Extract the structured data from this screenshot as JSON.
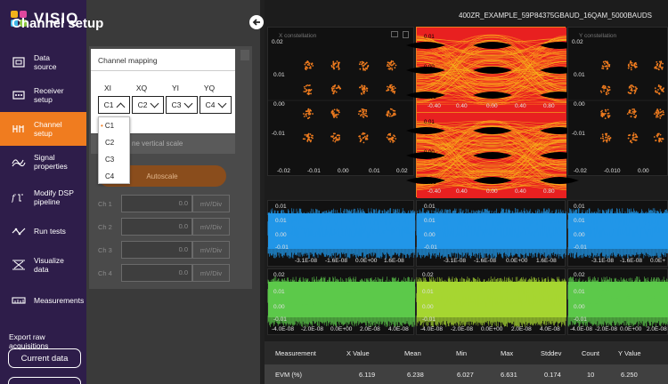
{
  "app": {
    "logo_text": "VISIQ",
    "logo_colors": [
      "#f2b21b",
      "#e0479e",
      "#3fb7e8",
      "#8bc53f"
    ]
  },
  "nav": {
    "items": [
      {
        "label": "Data source",
        "icon": "data-source-icon"
      },
      {
        "label": "Receiver setup",
        "icon": "receiver-icon"
      },
      {
        "label": "Channel setup",
        "icon": "channel-icon",
        "active": true
      },
      {
        "label": "Signal properties",
        "icon": "signal-icon"
      },
      {
        "label": "Modify DSP pipeline",
        "icon": "dsp-icon"
      },
      {
        "label": "Run tests",
        "icon": "run-tests-icon"
      },
      {
        "label": "Visualize data",
        "icon": "visualize-icon"
      },
      {
        "label": "Measurements",
        "icon": "measurements-icon"
      }
    ],
    "export_label": "Export raw acquisitions",
    "current_data_button": "Current data",
    "active_color": "#f07c1f"
  },
  "panel": {
    "title": "Channel setup",
    "mapping_title": "Channel mapping",
    "columns": [
      {
        "label": "XI",
        "value": "C1"
      },
      {
        "label": "XQ",
        "value": "C2"
      },
      {
        "label": "YI",
        "value": "C3"
      },
      {
        "label": "YQ",
        "value": "C4"
      }
    ],
    "dropdown_options": [
      "C1",
      "C2",
      "C3",
      "C4"
    ],
    "dropdown_selected": "C1",
    "vertical_scale_label": "ne vertical scale",
    "autoscale_label": "Autoscale",
    "channels": [
      {
        "label": "Ch 1",
        "value": "0.0",
        "unit": "mV/Div"
      },
      {
        "label": "Ch 2",
        "value": "0.0",
        "unit": "mV/Div"
      },
      {
        "label": "Ch 3",
        "value": "0.0",
        "unit": "mV/Div"
      },
      {
        "label": "Ch 4",
        "value": "0.0",
        "unit": "mV/Div"
      }
    ]
  },
  "plots": {
    "file_title": "400ZR_EXAMPLE_59P84375GBAUD_16QAM_5000BAUDS",
    "x_constellation_label": "X constellation",
    "y_constellation_label": "Y constellation",
    "x_const_yticks": [
      "0.02",
      "0.01",
      "0.00",
      "-0.01"
    ],
    "x_const_xticks": [
      "-0.02",
      "-0.01",
      "0.00",
      "0.01",
      "0.02"
    ],
    "y_const_yticks": [
      "0.02",
      "0.01",
      "0.00",
      "-0.01"
    ],
    "y_const_xticks": [
      "-0.02",
      "-0.010",
      "0.00"
    ],
    "eye_yticks": [
      "0.01",
      "0.00",
      "-0.01"
    ],
    "eye_xticks": [
      "-0.40",
      "0.40",
      "0.00",
      "0.40",
      "0.80"
    ],
    "time_xticks_a": [
      "-3.1E-08",
      "-1.6E-08",
      "0.0E+00",
      "1.6E-08"
    ],
    "time_xticks_b": [
      "-3.1E-08",
      "-1.6E-08",
      "0.0E+00",
      "1.6E-08"
    ],
    "time_xticks_c": [
      "-3.1E-08",
      "-1.6E-08",
      "0.0E+"
    ],
    "time_xticks_d": [
      "-4.0E-08",
      "-2.0E-08",
      "0.0E+00",
      "2.0E-08",
      "4.0E-08"
    ],
    "time_xticks_e": [
      "-4.0E-08",
      "-2.0E-08",
      "0.0E+00",
      "2.0E-08",
      "4.0E-08"
    ],
    "time_xticks_f": [
      "-4.0E-08",
      "-2.0E-08",
      "0.0E+00",
      "2.0E-08"
    ],
    "blue_yticks": [
      "0.01",
      "0.01",
      "0.00",
      "-0.01"
    ],
    "green_yticks": [
      "0.02",
      "0.01",
      "0.00",
      "-0.01"
    ],
    "colors": {
      "blue": "#2196e8",
      "green_left": "#5cc94a",
      "green_mid": "#a6d631",
      "constellation": "#f07c1f",
      "eye_red": "#e82020"
    }
  },
  "measurements": {
    "headers": [
      "Measurement",
      "X Value",
      "Mean",
      "Min",
      "Max",
      "Stddev",
      "Count",
      "Y Value"
    ],
    "rows": [
      [
        "EVM (%)",
        "6.119",
        "6.238",
        "6.027",
        "6.631",
        "0.174",
        "10",
        "6.250"
      ]
    ]
  }
}
